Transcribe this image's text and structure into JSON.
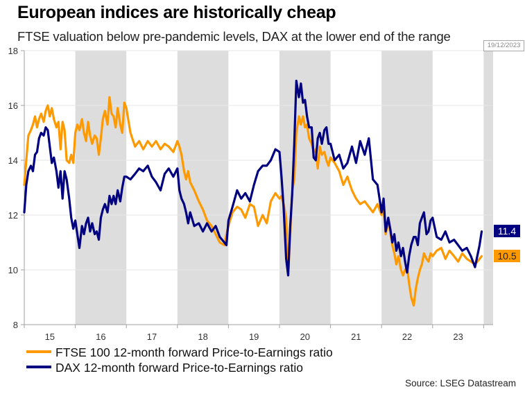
{
  "title": "European indices are historically cheap",
  "subtitle": "FTSE valuation below pre-pandemic levels, DAX at the lower end of the range",
  "datestamp": "19/12/2023",
  "source": "Source: LSEG Datastream",
  "colors": {
    "ftse": "#ff9900",
    "dax": "#000080",
    "band": "#dddddd",
    "grid": "#e6e6e6",
    "axis": "#a0a0a0"
  },
  "chart_data": {
    "type": "line",
    "title": "European indices are historically cheap",
    "subtitle": "FTSE valuation below pre-pandemic levels, DAX at the lower end of the range",
    "xlabel": "",
    "ylabel": "",
    "xlim": [
      2015.0,
      2024.2
    ],
    "ylim": [
      8,
      18
    ],
    "yticks": [
      8,
      10,
      12,
      14,
      16,
      18
    ],
    "xtick_labels": [
      "15",
      "16",
      "17",
      "18",
      "19",
      "20",
      "21",
      "22",
      "23"
    ],
    "xtick_years": [
      2015,
      2016,
      2017,
      2018,
      2019,
      2020,
      2021,
      2022,
      2023
    ],
    "shaded_years": [
      2016,
      2018,
      2020,
      2022,
      2024
    ],
    "grid": true,
    "legend_position": "bottom-left",
    "series": [
      {
        "name": "FTSE 100 12-month forward Price-to-Earnings ratio",
        "key": "ftse",
        "end_label": "10.5",
        "x": [
          2015.0,
          2015.04,
          2015.08,
          2015.13,
          2015.17,
          2015.21,
          2015.25,
          2015.29,
          2015.33,
          2015.38,
          2015.42,
          2015.46,
          2015.5,
          2015.54,
          2015.58,
          2015.63,
          2015.67,
          2015.71,
          2015.75,
          2015.79,
          2015.83,
          2015.88,
          2015.92,
          2015.96,
          2016.0,
          2016.04,
          2016.08,
          2016.13,
          2016.17,
          2016.21,
          2016.25,
          2016.29,
          2016.33,
          2016.38,
          2016.42,
          2016.46,
          2016.5,
          2016.54,
          2016.58,
          2016.63,
          2016.67,
          2016.71,
          2016.75,
          2016.79,
          2016.83,
          2016.88,
          2016.92,
          2016.96,
          2017.0,
          2017.08,
          2017.17,
          2017.25,
          2017.33,
          2017.42,
          2017.5,
          2017.58,
          2017.67,
          2017.75,
          2017.83,
          2017.92,
          2018.0,
          2018.04,
          2018.08,
          2018.13,
          2018.17,
          2018.21,
          2018.25,
          2018.33,
          2018.42,
          2018.5,
          2018.58,
          2018.67,
          2018.75,
          2018.83,
          2018.92,
          2018.96,
          2019.0,
          2019.08,
          2019.17,
          2019.25,
          2019.33,
          2019.42,
          2019.5,
          2019.58,
          2019.67,
          2019.75,
          2019.83,
          2019.92,
          2020.0,
          2020.04,
          2020.08,
          2020.13,
          2020.17,
          2020.21,
          2020.25,
          2020.29,
          2020.33,
          2020.38,
          2020.42,
          2020.46,
          2020.5,
          2020.54,
          2020.58,
          2020.63,
          2020.67,
          2020.71,
          2020.75,
          2020.79,
          2020.83,
          2020.88,
          2020.92,
          2020.96,
          2021.0,
          2021.08,
          2021.17,
          2021.25,
          2021.33,
          2021.42,
          2021.5,
          2021.58,
          2021.67,
          2021.75,
          2021.83,
          2021.92,
          2022.0,
          2022.04,
          2022.08,
          2022.13,
          2022.17,
          2022.21,
          2022.25,
          2022.29,
          2022.33,
          2022.38,
          2022.42,
          2022.46,
          2022.5,
          2022.54,
          2022.58,
          2022.63,
          2022.67,
          2022.71,
          2022.75,
          2022.79,
          2022.83,
          2022.88,
          2022.92,
          2022.96,
          2023.0,
          2023.08,
          2023.17,
          2023.25,
          2023.33,
          2023.42,
          2023.5,
          2023.58,
          2023.67,
          2023.75,
          2023.83,
          2023.92,
          2023.96
        ],
        "values": [
          13.1,
          14.0,
          14.9,
          15.1,
          15.3,
          15.6,
          15.2,
          15.5,
          15.7,
          15.4,
          15.8,
          16.0,
          15.6,
          15.9,
          15.5,
          15.2,
          15.4,
          14.4,
          15.4,
          15.1,
          14.0,
          13.9,
          14.2,
          13.9,
          15.0,
          15.3,
          15.1,
          15.5,
          15.0,
          14.7,
          15.4,
          14.9,
          14.6,
          14.9,
          14.8,
          14.2,
          14.8,
          15.5,
          15.8,
          15.3,
          16.3,
          15.7,
          15.6,
          15.2,
          15.9,
          15.3,
          15.0,
          16.1,
          15.9,
          15.0,
          14.5,
          14.7,
          14.4,
          14.7,
          14.5,
          14.7,
          14.4,
          14.6,
          14.5,
          14.3,
          14.7,
          14.5,
          14.2,
          13.6,
          13.3,
          13.6,
          13.2,
          12.9,
          12.5,
          12.2,
          11.8,
          11.6,
          11.3,
          11.0,
          10.9,
          11.3,
          11.6,
          12.1,
          12.3,
          12.2,
          11.9,
          12.4,
          12.3,
          11.6,
          12.0,
          11.7,
          12.5,
          12.8,
          12.6,
          12.7,
          12.4,
          11.9,
          9.8,
          11.3,
          12.9,
          13.3,
          15.0,
          15.6,
          15.3,
          15.6,
          15.2,
          15.3,
          14.8,
          14.6,
          14.3,
          14.4,
          13.7,
          14.5,
          14.2,
          14.3,
          14.0,
          13.8,
          14.1,
          13.9,
          13.6,
          13.1,
          13.4,
          12.9,
          12.6,
          12.4,
          12.5,
          12.3,
          12.1,
          12.4,
          12.0,
          12.3,
          11.3,
          11.8,
          11.4,
          10.9,
          10.6,
          10.2,
          10.5,
          10.0,
          9.8,
          10.0,
          10.1,
          9.5,
          9.0,
          8.7,
          9.3,
          9.7,
          10.0,
          10.2,
          10.6,
          10.4,
          10.3,
          10.6,
          10.5,
          10.7,
          10.8,
          10.4,
          10.7,
          10.5,
          10.3,
          10.6,
          10.4,
          10.3,
          10.2,
          10.4,
          10.5
        ]
      },
      {
        "name": "DAX 12-month forward Price-to-Earnings ratio",
        "key": "dax",
        "end_label": "11.4",
        "x": [
          2015.0,
          2015.04,
          2015.08,
          2015.13,
          2015.17,
          2015.21,
          2015.25,
          2015.29,
          2015.33,
          2015.38,
          2015.42,
          2015.46,
          2015.5,
          2015.54,
          2015.58,
          2015.63,
          2015.67,
          2015.71,
          2015.75,
          2015.79,
          2015.83,
          2015.88,
          2015.92,
          2015.96,
          2016.0,
          2016.04,
          2016.08,
          2016.13,
          2016.17,
          2016.21,
          2016.25,
          2016.29,
          2016.33,
          2016.38,
          2016.42,
          2016.46,
          2016.5,
          2016.54,
          2016.58,
          2016.63,
          2016.67,
          2016.71,
          2016.75,
          2016.79,
          2016.83,
          2016.88,
          2016.92,
          2016.96,
          2017.0,
          2017.08,
          2017.17,
          2017.25,
          2017.33,
          2017.42,
          2017.5,
          2017.58,
          2017.67,
          2017.75,
          2017.83,
          2017.92,
          2018.0,
          2018.04,
          2018.08,
          2018.13,
          2018.17,
          2018.21,
          2018.25,
          2018.33,
          2018.42,
          2018.5,
          2018.58,
          2018.67,
          2018.75,
          2018.83,
          2018.92,
          2018.96,
          2019.0,
          2019.08,
          2019.17,
          2019.25,
          2019.33,
          2019.42,
          2019.5,
          2019.58,
          2019.67,
          2019.75,
          2019.83,
          2019.92,
          2020.0,
          2020.04,
          2020.08,
          2020.13,
          2020.17,
          2020.21,
          2020.25,
          2020.29,
          2020.33,
          2020.38,
          2020.42,
          2020.46,
          2020.5,
          2020.54,
          2020.58,
          2020.63,
          2020.67,
          2020.71,
          2020.75,
          2020.79,
          2020.83,
          2020.88,
          2020.92,
          2020.96,
          2021.0,
          2021.08,
          2021.17,
          2021.25,
          2021.33,
          2021.42,
          2021.5,
          2021.58,
          2021.67,
          2021.75,
          2021.83,
          2021.92,
          2022.0,
          2022.04,
          2022.08,
          2022.13,
          2022.17,
          2022.21,
          2022.25,
          2022.29,
          2022.33,
          2022.38,
          2022.42,
          2022.46,
          2022.5,
          2022.54,
          2022.58,
          2022.63,
          2022.67,
          2022.71,
          2022.75,
          2022.79,
          2022.83,
          2022.88,
          2022.92,
          2022.96,
          2023.0,
          2023.08,
          2023.17,
          2023.25,
          2023.33,
          2023.42,
          2023.5,
          2023.58,
          2023.67,
          2023.75,
          2023.83,
          2023.92,
          2023.96
        ],
        "values": [
          12.1,
          13.1,
          13.6,
          13.8,
          13.6,
          14.2,
          14.3,
          14.8,
          15.0,
          14.9,
          15.2,
          15.1,
          14.5,
          13.9,
          14.1,
          13.6,
          13.0,
          13.6,
          12.6,
          13.6,
          13.3,
          12.6,
          11.9,
          11.5,
          11.8,
          11.3,
          10.8,
          11.6,
          11.3,
          11.7,
          11.9,
          11.4,
          11.7,
          11.3,
          11.4,
          11.1,
          11.9,
          12.2,
          12.4,
          12.1,
          12.7,
          12.4,
          12.7,
          12.4,
          12.9,
          12.5,
          13.0,
          13.4,
          13.4,
          13.3,
          13.5,
          13.7,
          13.6,
          13.8,
          13.4,
          13.2,
          12.9,
          13.5,
          13.7,
          13.4,
          13.7,
          12.9,
          12.6,
          12.4,
          12.1,
          11.7,
          12.1,
          11.6,
          11.7,
          11.4,
          11.7,
          11.4,
          11.6,
          11.2,
          11.0,
          10.9,
          11.8,
          12.3,
          12.9,
          12.6,
          12.8,
          12.5,
          13.1,
          13.6,
          13.8,
          13.8,
          14.0,
          14.4,
          14.3,
          13.4,
          12.3,
          10.4,
          9.8,
          11.6,
          12.8,
          14.6,
          16.9,
          16.3,
          16.8,
          16.1,
          16.2,
          15.6,
          15.2,
          15.2,
          14.1,
          14.0,
          14.8,
          15.0,
          14.6,
          15.1,
          15.2,
          14.6,
          14.6,
          14.0,
          14.2,
          13.7,
          13.9,
          14.5,
          13.9,
          14.7,
          14.2,
          14.8,
          13.3,
          13.1,
          12.1,
          12.6,
          11.4,
          11.9,
          11.5,
          11.0,
          11.3,
          10.7,
          11.0,
          10.5,
          10.8,
          10.3,
          9.9,
          10.5,
          10.9,
          11.2,
          11.2,
          10.9,
          11.7,
          11.9,
          12.1,
          11.3,
          11.4,
          11.8,
          11.9,
          11.2,
          11.1,
          11.4,
          11.0,
          11.1,
          10.9,
          10.7,
          10.8,
          10.5,
          10.1,
          10.9,
          11.4
        ]
      }
    ]
  }
}
